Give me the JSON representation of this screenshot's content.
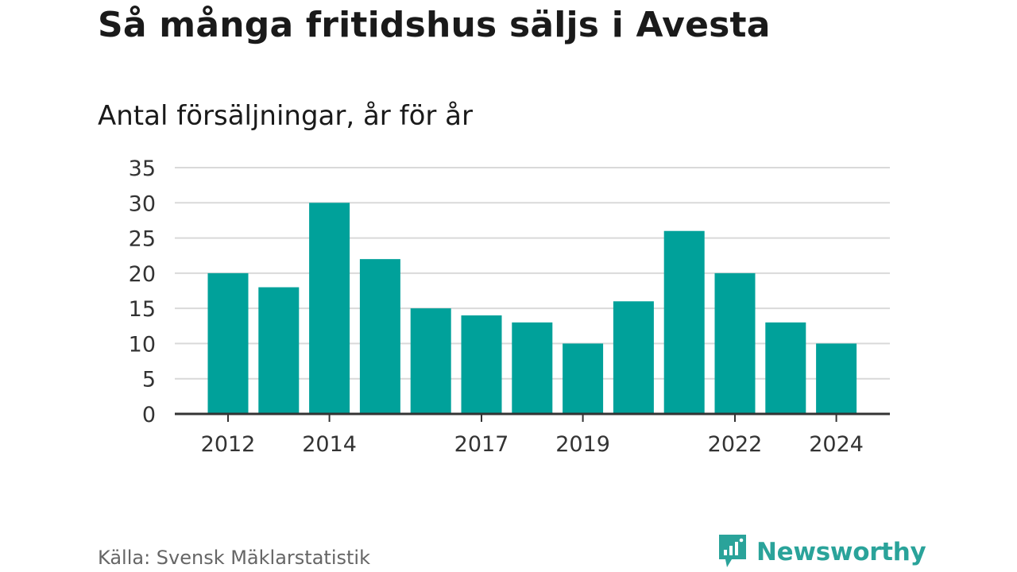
{
  "title": "Så många fritidshus säljs i Avesta",
  "subtitle": "Antal försäljningar, år för år",
  "source": "Källa: Svensk Mäklarstatistik",
  "brand": {
    "name": "Newsworthy",
    "icon": "chat-bar-chart-icon"
  },
  "colors": {
    "bar": "#00a19a",
    "grid": "#d9d9d9",
    "axis": "#333333",
    "brand": "#2aa39a"
  },
  "chart_data": {
    "type": "bar",
    "categories": [
      "2012",
      "2013",
      "2014",
      "2015",
      "2016",
      "2017",
      "2018",
      "2019",
      "2020",
      "2021",
      "2022",
      "2023",
      "2024"
    ],
    "values": [
      20,
      18,
      30,
      22,
      15,
      14,
      13,
      10,
      16,
      26,
      20,
      13,
      10
    ],
    "x_tick_labels": [
      "2012",
      "2014",
      "2017",
      "2019",
      "2022",
      "2024"
    ],
    "y_ticks": [
      0,
      5,
      10,
      15,
      20,
      25,
      30,
      35
    ],
    "ylim": [
      0,
      35
    ],
    "grid": true,
    "xlabel": "",
    "ylabel": ""
  }
}
